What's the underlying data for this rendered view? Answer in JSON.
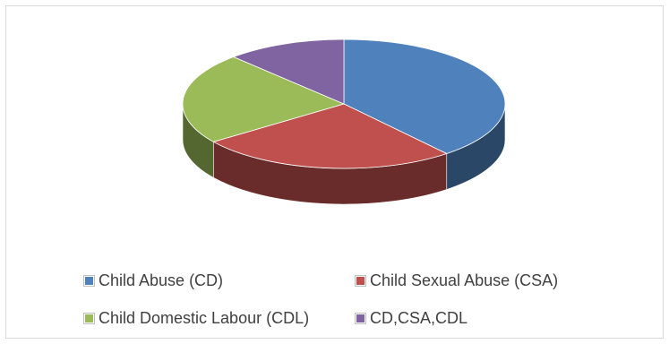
{
  "chart_data": {
    "type": "pie",
    "style": "3d",
    "title": "",
    "legend_position": "bottom",
    "categories": [
      "Child Abuse (CD)",
      "Child Sexual Abuse (CSA)",
      "Child Domestic Labour (CDL)",
      "CD,CSA,CDL"
    ],
    "values": [
      39,
      26,
      23,
      12
    ],
    "colors": [
      "#4f81bd",
      "#c0504d",
      "#9bbb59",
      "#8064a2"
    ]
  }
}
